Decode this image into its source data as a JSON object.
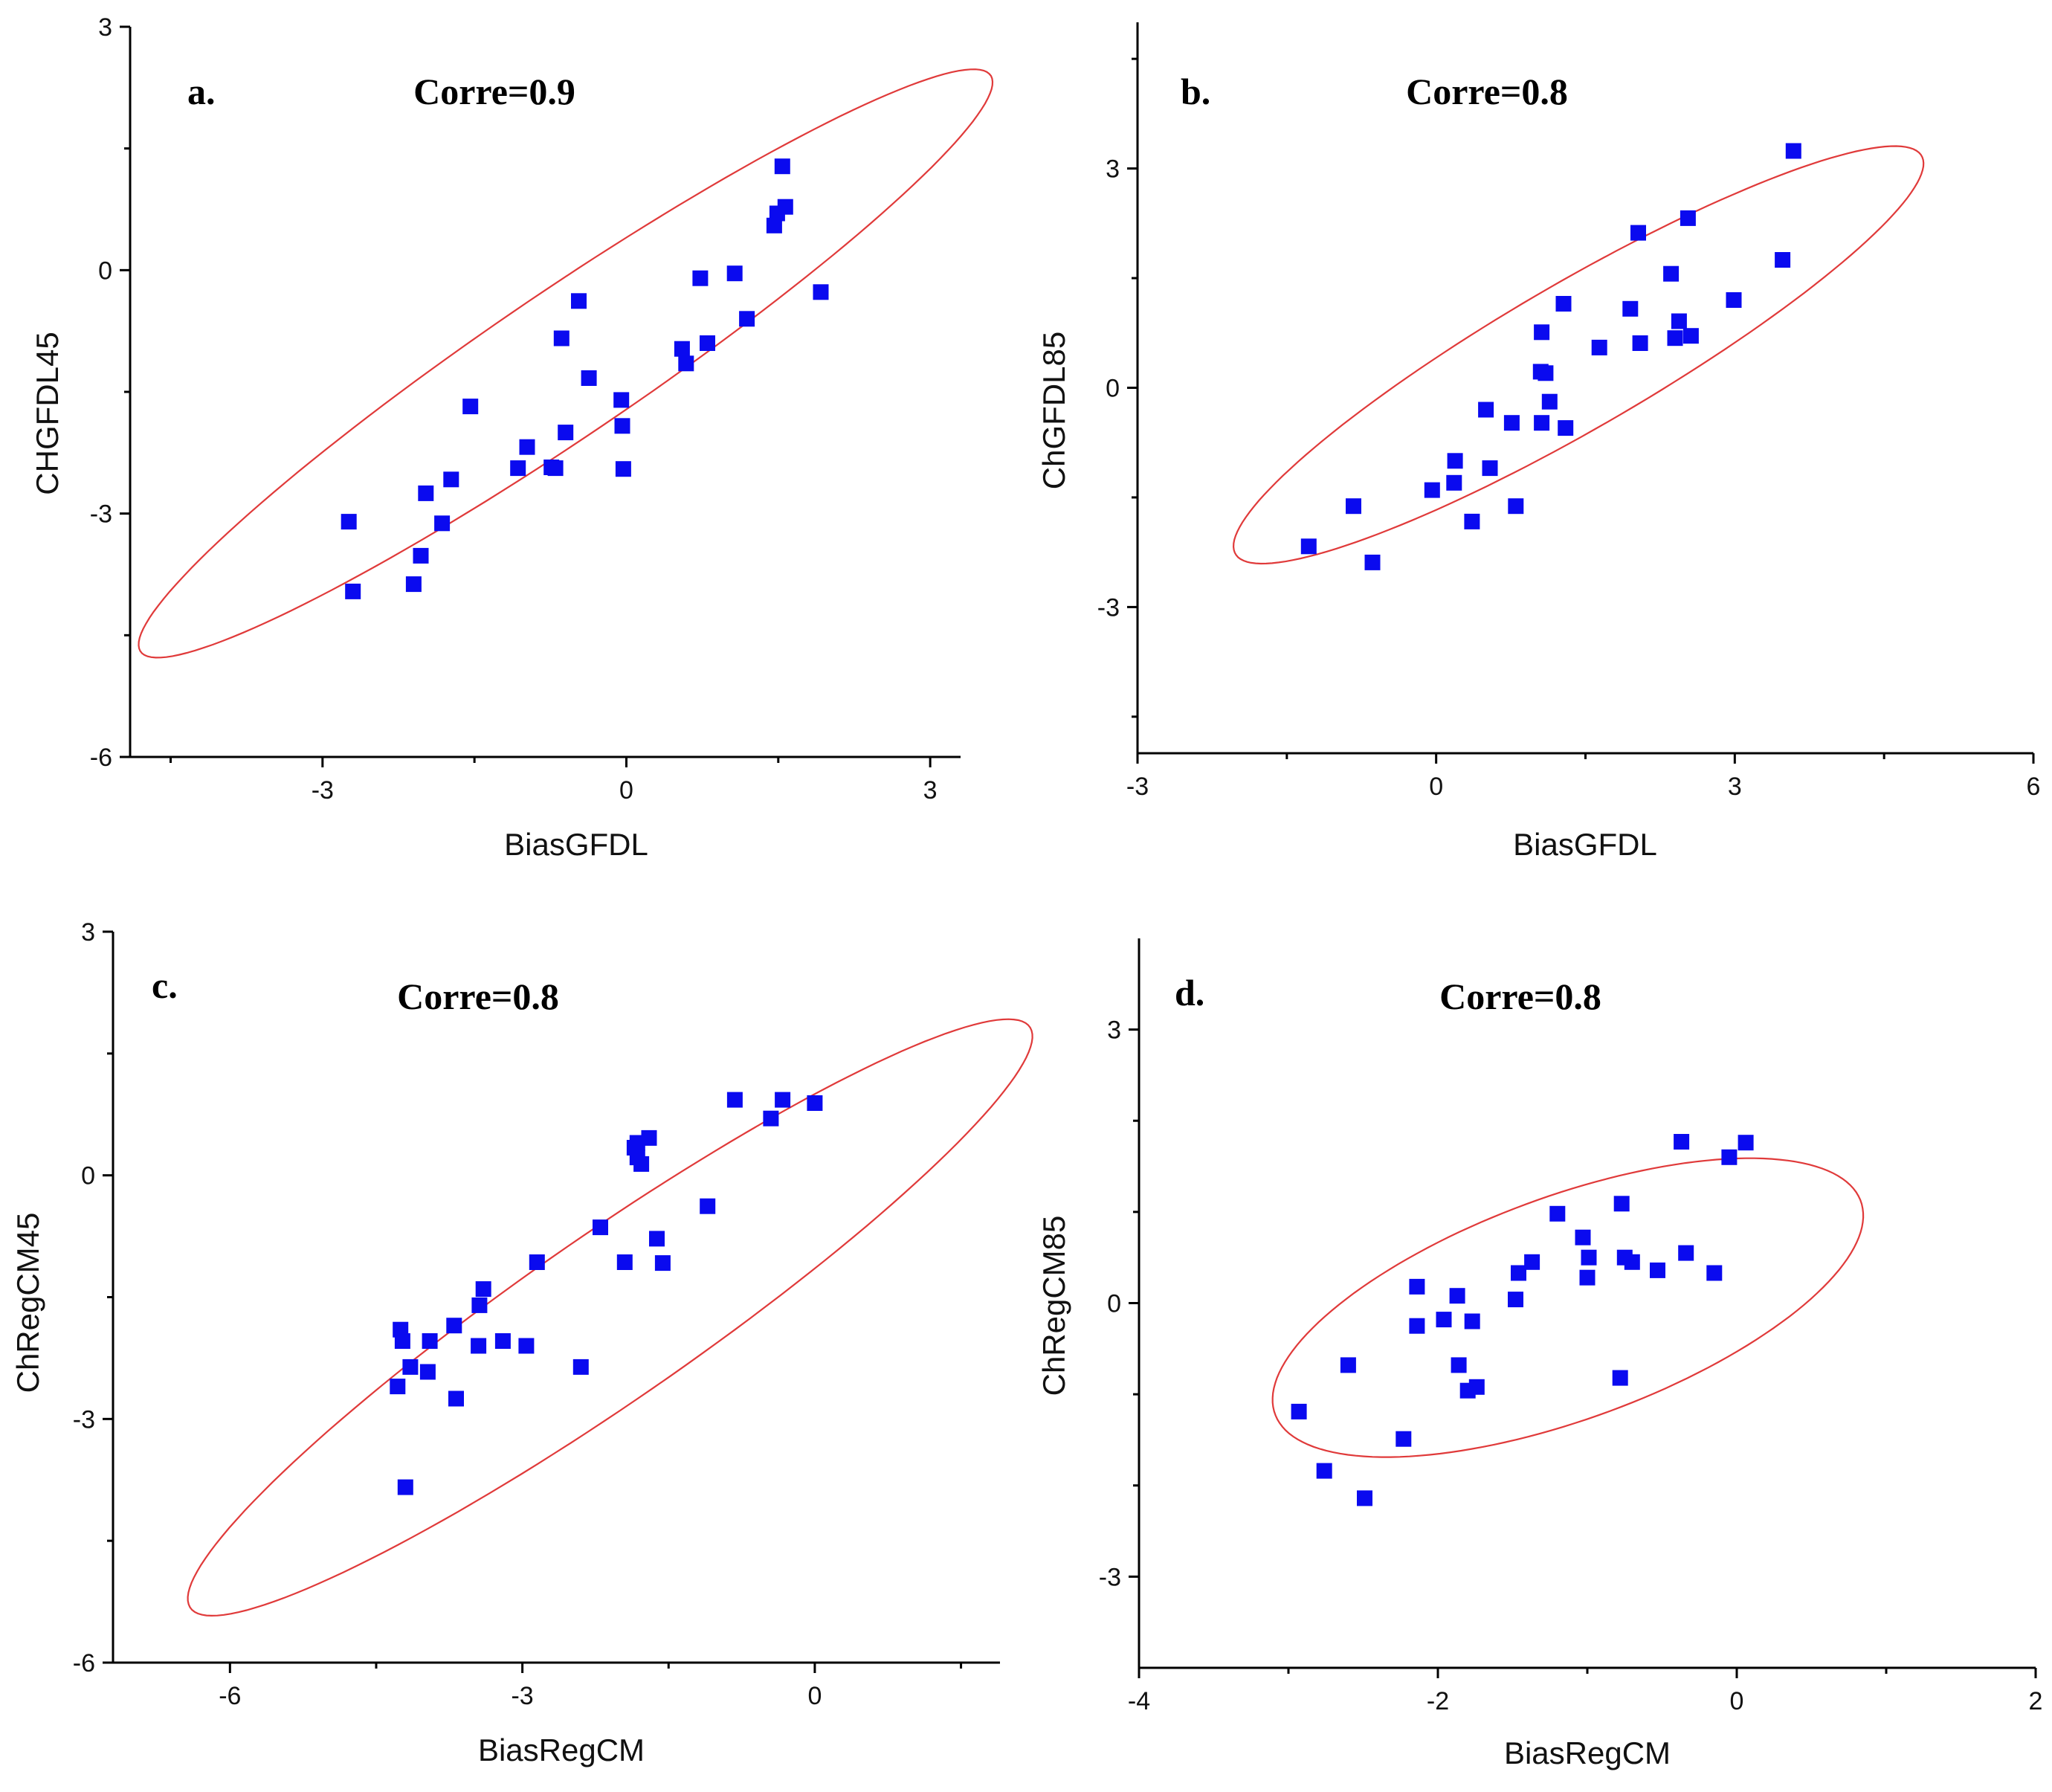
{
  "colors": {
    "marker": "#0a0aef",
    "ellipse": "#e03a3a",
    "axis": "#000000"
  },
  "chart_data": [
    {
      "type": "scatter",
      "panel": "a.",
      "annotation": "Corre=0.9",
      "xlabel": "BiasGFDL",
      "ylabel": "CHGFDL45",
      "xlim": [
        -4.9,
        3.3
      ],
      "ylim": [
        -6,
        3
      ],
      "xticks": [
        -3,
        0,
        3
      ],
      "xtick_labels": [
        "-3",
        "0",
        "3"
      ],
      "xminor": [
        -4.5,
        -1.5,
        1.5
      ],
      "yticks": [
        -6,
        -3,
        0,
        3
      ],
      "ytick_labels": [
        "-6",
        "-3",
        "0",
        "3"
      ],
      "yminor": [
        -4.5,
        -1.5,
        1.5
      ],
      "points": [
        [
          -2.74,
          -3.1
        ],
        [
          -2.7,
          -3.96
        ],
        [
          -2.1,
          -3.87
        ],
        [
          -2.03,
          -3.52
        ],
        [
          -1.98,
          -2.75
        ],
        [
          -1.82,
          -3.12
        ],
        [
          -1.73,
          -2.58
        ],
        [
          -1.54,
          -1.68
        ],
        [
          -1.07,
          -2.44
        ],
        [
          -0.98,
          -2.18
        ],
        [
          -0.74,
          -2.43
        ],
        [
          -0.7,
          -2.44
        ],
        [
          -0.64,
          -0.84
        ],
        [
          -0.6,
          -2.0
        ],
        [
          -0.47,
          -0.38
        ],
        [
          -0.37,
          -1.33
        ],
        [
          -0.05,
          -1.6
        ],
        [
          -0.04,
          -1.92
        ],
        [
          -0.03,
          -2.45
        ],
        [
          0.55,
          -0.97
        ],
        [
          0.59,
          -1.15
        ],
        [
          0.73,
          -0.1
        ],
        [
          0.8,
          -0.9
        ],
        [
          1.07,
          -0.04
        ],
        [
          1.19,
          -0.6
        ],
        [
          1.46,
          0.55
        ],
        [
          1.49,
          0.7
        ],
        [
          1.54,
          1.28
        ],
        [
          1.57,
          0.78
        ],
        [
          1.92,
          -0.27
        ]
      ],
      "ellipse": {
        "cx": -0.6,
        "cy": -1.15,
        "rx": 5.5,
        "ry": 0.82,
        "angle_deg": 40.5
      }
    },
    {
      "type": "scatter",
      "panel": "b.",
      "annotation": "Corre=0.8",
      "xlabel": "BiasGFDL",
      "ylabel": "ChGFDL85",
      "xlim": [
        -3,
        6
      ],
      "ylim": [
        -5,
        5
      ],
      "xticks": [
        -3,
        0,
        3,
        6
      ],
      "xtick_labels": [
        "-3",
        "0",
        "3",
        "6"
      ],
      "xminor": [
        -1.5,
        1.5,
        4.5
      ],
      "yticks": [
        -3,
        0,
        3
      ],
      "ytick_labels": [
        "-3",
        "0",
        "3"
      ],
      "yminor": [
        -4.5,
        -1.5,
        1.5,
        4.5
      ],
      "points": [
        [
          -1.28,
          -2.17
        ],
        [
          -0.83,
          -1.62
        ],
        [
          -0.64,
          -2.39
        ],
        [
          -0.04,
          -1.4
        ],
        [
          0.18,
          -1.3
        ],
        [
          0.19,
          -1.0
        ],
        [
          0.36,
          -1.83
        ],
        [
          0.5,
          -0.3
        ],
        [
          0.54,
          -1.1
        ],
        [
          0.76,
          -0.48
        ],
        [
          0.8,
          -1.62
        ],
        [
          1.05,
          0.22
        ],
        [
          1.06,
          -0.48
        ],
        [
          1.06,
          0.76
        ],
        [
          1.1,
          0.2
        ],
        [
          1.14,
          -0.19
        ],
        [
          1.28,
          1.15
        ],
        [
          1.3,
          -0.55
        ],
        [
          1.64,
          0.55
        ],
        [
          1.95,
          1.08
        ],
        [
          2.03,
          2.12
        ],
        [
          2.05,
          0.61
        ],
        [
          2.36,
          1.56
        ],
        [
          2.4,
          0.68
        ],
        [
          2.44,
          0.91
        ],
        [
          2.53,
          2.32
        ],
        [
          2.56,
          0.71
        ],
        [
          2.99,
          1.2
        ],
        [
          3.48,
          1.75
        ],
        [
          3.59,
          3.24
        ]
      ],
      "ellipse": {
        "cx": 1.43,
        "cy": 0.45,
        "rx": 4.4,
        "ry": 0.9,
        "angle_deg": 39
      }
    },
    {
      "type": "scatter",
      "panel": "c.",
      "annotation": "Corre=0.8",
      "xlabel": "BiasRegCM",
      "ylabel": "ChRegCM45",
      "xlim": [
        -7.2,
        1.9
      ],
      "ylim": [
        -6,
        3
      ],
      "xticks": [
        -6,
        -3,
        0
      ],
      "xtick_labels": [
        "-6",
        "-3",
        "0"
      ],
      "xminor": [
        -4.5,
        -1.5,
        1.5
      ],
      "yticks": [
        -6,
        -3,
        0,
        3
      ],
      "ytick_labels": [
        "-6",
        "-3",
        "0",
        "3"
      ],
      "yminor": [
        -4.5,
        -1.5,
        1.5
      ],
      "points": [
        [
          -4.2,
          -3.84
        ],
        [
          -4.25,
          -1.9
        ],
        [
          -4.23,
          -2.04
        ],
        [
          -4.28,
          -2.6
        ],
        [
          -4.15,
          -2.36
        ],
        [
          -3.97,
          -2.42
        ],
        [
          -3.95,
          -2.04
        ],
        [
          -3.7,
          -1.85
        ],
        [
          -3.68,
          -2.75
        ],
        [
          -3.45,
          -2.1
        ],
        [
          -3.44,
          -1.6
        ],
        [
          -3.4,
          -1.4
        ],
        [
          -3.2,
          -2.04
        ],
        [
          -2.96,
          -2.1
        ],
        [
          -2.85,
          -1.07
        ],
        [
          -2.4,
          -2.36
        ],
        [
          -2.2,
          -0.64
        ],
        [
          -1.95,
          -1.07
        ],
        [
          -1.85,
          0.34
        ],
        [
          -1.82,
          0.4
        ],
        [
          -1.82,
          0.22
        ],
        [
          -1.78,
          0.14
        ],
        [
          -1.7,
          0.46
        ],
        [
          -1.62,
          -0.78
        ],
        [
          -1.56,
          -1.08
        ],
        [
          -1.1,
          -0.38
        ],
        [
          -0.82,
          0.93
        ],
        [
          -0.45,
          0.7
        ],
        [
          -0.33,
          0.93
        ],
        [
          0.0,
          0.89
        ]
      ],
      "ellipse": {
        "cx": -2.1,
        "cy": -1.75,
        "rx": 5.6,
        "ry": 0.95,
        "angle_deg": 40
      }
    },
    {
      "type": "scatter",
      "panel": "d.",
      "annotation": "Corre=0.8",
      "xlabel": "BiasRegCM",
      "ylabel": "ChRegCM85",
      "xlim": [
        -4,
        2
      ],
      "ylim": [
        -4,
        4
      ],
      "xticks": [
        -4,
        -2,
        0,
        2
      ],
      "xtick_labels": [
        "-4",
        "-2",
        "0",
        "2"
      ],
      "xminor": [
        -3,
        -1,
        1
      ],
      "yticks": [
        -3,
        0,
        3
      ],
      "ytick_labels": [
        "-3",
        "0",
        "3"
      ],
      "yminor": [
        -2,
        -1,
        1,
        2
      ],
      "points": [
        [
          -2.93,
          -1.19
        ],
        [
          -2.76,
          -1.84
        ],
        [
          -2.6,
          -0.68
        ],
        [
          -2.49,
          -2.14
        ],
        [
          -2.23,
          -1.49
        ],
        [
          -2.14,
          0.18
        ],
        [
          -2.14,
          -0.25
        ],
        [
          -1.96,
          -0.18
        ],
        [
          -1.87,
          0.08
        ],
        [
          -1.86,
          -0.68
        ],
        [
          -1.8,
          -0.96
        ],
        [
          -1.77,
          -0.2
        ],
        [
          -1.74,
          -0.92
        ],
        [
          -1.48,
          0.04
        ],
        [
          -1.46,
          0.33
        ],
        [
          -1.37,
          0.45
        ],
        [
          -1.2,
          0.98
        ],
        [
          -1.03,
          0.72
        ],
        [
          -1.0,
          0.28
        ],
        [
          -0.99,
          0.5
        ],
        [
          -0.78,
          -0.82
        ],
        [
          -0.77,
          1.09
        ],
        [
          -0.75,
          0.5
        ],
        [
          -0.7,
          0.45
        ],
        [
          -0.53,
          0.36
        ],
        [
          -0.37,
          1.77
        ],
        [
          -0.34,
          0.55
        ],
        [
          -0.15,
          0.33
        ],
        [
          -0.05,
          1.6
        ],
        [
          0.06,
          1.76
        ]
      ],
      "ellipse": {
        "cx": -1.13,
        "cy": -0.05,
        "rx": 2.32,
        "ry": 1.1,
        "angle_deg": 36.5
      }
    }
  ]
}
